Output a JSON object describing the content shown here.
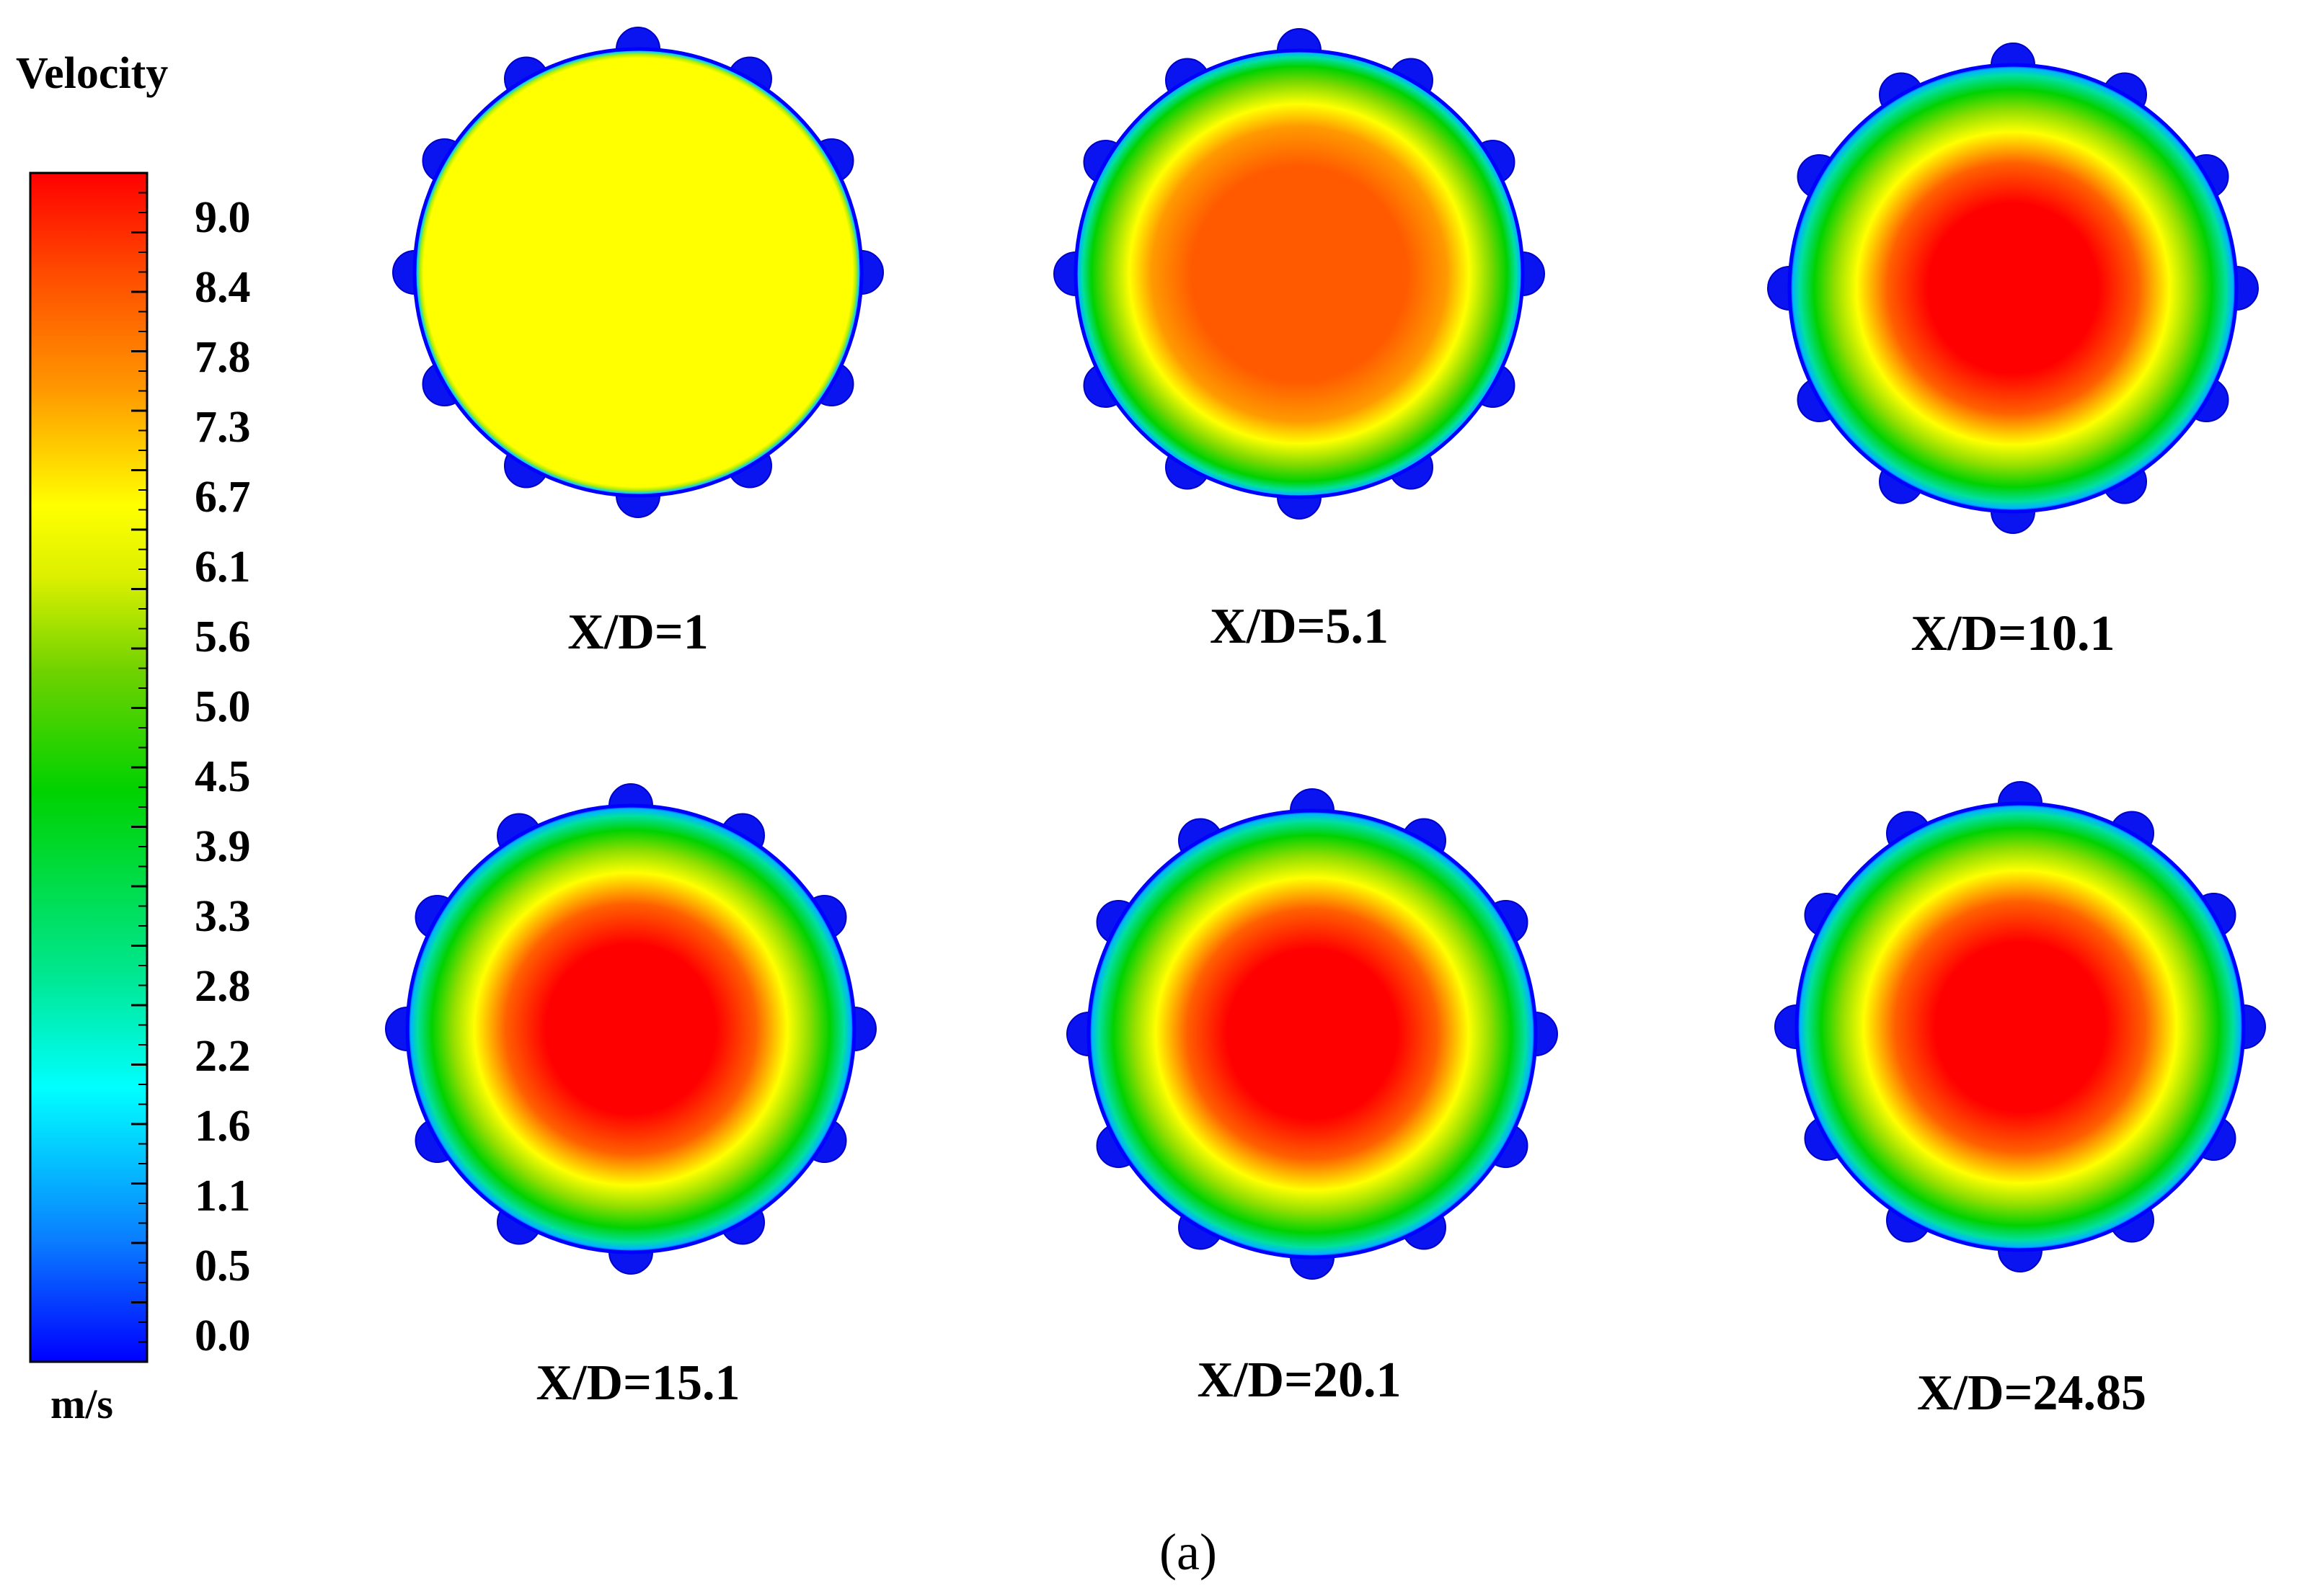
{
  "legend": {
    "title": "Velocity",
    "unit": "m/s",
    "min": 0.0,
    "max": 9.5,
    "ticks": [
      "9.0",
      "8.4",
      "7.8",
      "7.3",
      "6.7",
      "6.1",
      "5.6",
      "5.0",
      "4.5",
      "3.9",
      "3.3",
      "2.8",
      "2.2",
      "1.6",
      "1.1",
      "0.5",
      "0.0"
    ],
    "colormap": [
      "#0000ff",
      "#0a7bff",
      "#00ffff",
      "#00e68c",
      "#00d200",
      "#6ed200",
      "#dcf000",
      "#ffff00",
      "#ff9600",
      "#ff5000",
      "#ff0000"
    ]
  },
  "panels": [
    {
      "label": "X/D=1",
      "center_velocity": 6.9,
      "profile": "flat"
    },
    {
      "label": "X/D=5.1",
      "center_velocity": 8.2,
      "profile": "developing"
    },
    {
      "label": "X/D=10.1",
      "center_velocity": 9.3,
      "profile": "developed"
    },
    {
      "label": "X/D=15.1",
      "center_velocity": 9.5,
      "profile": "developed"
    },
    {
      "label": "X/D=20.1",
      "center_velocity": 9.5,
      "profile": "developed"
    },
    {
      "label": "X/D=24.85",
      "center_velocity": 9.5,
      "profile": "developed"
    }
  ],
  "caption": "(a)"
}
